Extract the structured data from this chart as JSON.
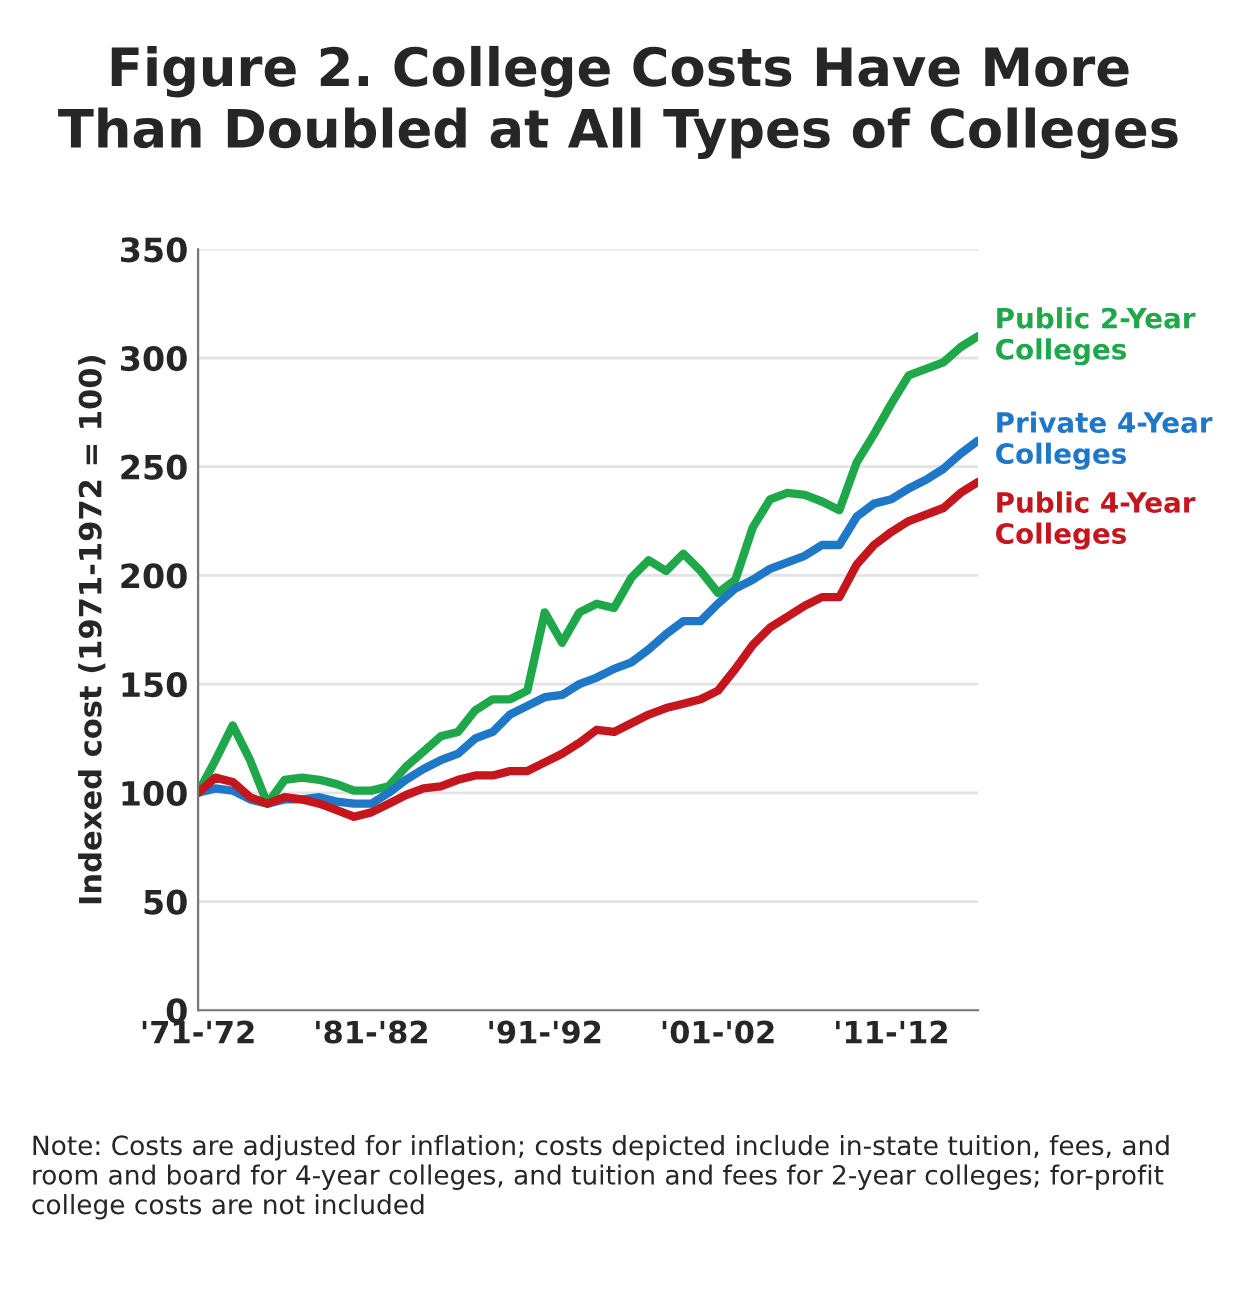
{
  "chart_data": {
    "type": "line",
    "title": "Figure 2. College Costs Have More\nThan Doubled at All Types of Colleges",
    "ylabel": "Indexed cost (1971-1972 = 100)",
    "categories": [
      "'71-'72",
      null,
      null,
      null,
      null,
      null,
      null,
      null,
      null,
      null,
      "'81-'82",
      null,
      null,
      null,
      null,
      null,
      null,
      null,
      null,
      null,
      "'91-'92",
      null,
      null,
      null,
      null,
      null,
      null,
      null,
      null,
      null,
      "'01-'02",
      null,
      null,
      null,
      null,
      null,
      null,
      null,
      null,
      null,
      "'11-'12",
      null,
      null,
      null,
      null,
      null
    ],
    "series": [
      {
        "name": "Public 2-Year\nColleges",
        "color": "#1fa84a",
        "values": [
          100,
          115,
          131,
          115,
          95,
          106,
          107,
          106,
          104,
          101,
          101,
          103,
          112,
          119,
          126,
          128,
          138,
          143,
          143,
          147,
          183,
          169,
          183,
          187,
          185,
          199,
          207,
          202,
          210,
          202,
          192,
          198,
          222,
          235,
          238,
          237,
          234,
          230,
          252,
          265,
          279,
          292,
          295,
          298,
          305,
          310
        ]
      },
      {
        "name": "Private 4-Year\nColleges",
        "color": "#1f77c8",
        "values": [
          100,
          102,
          101,
          97,
          95,
          97,
          97,
          98,
          96,
          95,
          95,
          100,
          106,
          111,
          115,
          118,
          125,
          128,
          136,
          140,
          144,
          145,
          150,
          153,
          157,
          160,
          166,
          173,
          179,
          179,
          187,
          194,
          198,
          203,
          206,
          209,
          214,
          214,
          227,
          233,
          235,
          240,
          244,
          249,
          256,
          262
        ]
      },
      {
        "name": "Public 4-Year\nColleges",
        "color": "#c4161c",
        "values": [
          100,
          107,
          105,
          98,
          95,
          98,
          97,
          95,
          92,
          89,
          91,
          95,
          99,
          102,
          103,
          106,
          108,
          108,
          110,
          110,
          114,
          118,
          123,
          129,
          128,
          132,
          136,
          139,
          141,
          143,
          147,
          157,
          168,
          176,
          181,
          186,
          190,
          190,
          205,
          214,
          220,
          225,
          228,
          231,
          238,
          243
        ]
      }
    ],
    "ylim": [
      0,
      350
    ],
    "yticks": [
      0,
      50,
      100,
      150,
      200,
      250,
      300,
      350
    ],
    "grid": "y",
    "legend": false,
    "marker": "none",
    "line_style": "solid",
    "annotations": [
      "Note: Costs are adjusted for inflation; costs depicted include in-state tuition, fees, and room and board for 4-year colleges, and tuition and fees for 2-year colleges; for-profit college costs are not included"
    ]
  }
}
